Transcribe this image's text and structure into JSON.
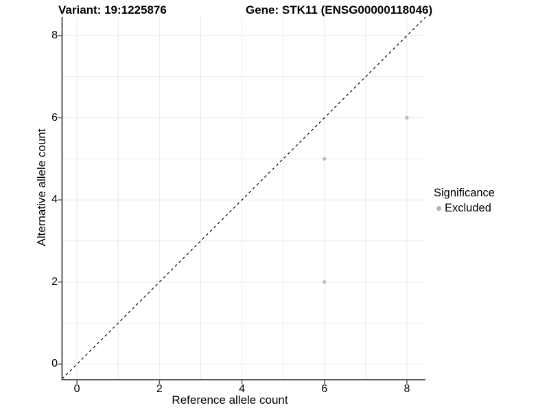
{
  "titles": {
    "variant": "Variant: 19:1225876",
    "gene": "Gene: STK11 (ENSG00000118046)"
  },
  "chart_data": {
    "type": "scatter",
    "xlabel": "Reference allele count",
    "ylabel": "Alternative allele count",
    "xlim": [
      -0.36,
      8.45
    ],
    "ylim": [
      -0.38,
      8.45
    ],
    "x_ticks": [
      0,
      2,
      4,
      6,
      8
    ],
    "y_ticks": [
      0,
      2,
      4,
      6,
      8
    ],
    "gridlines_every": 1,
    "grid": "on",
    "legend_position": "right-center",
    "series": [
      {
        "name": "Excluded",
        "color": "#bcbcbc",
        "points": [
          {
            "x": 6,
            "y": 2
          },
          {
            "x": 6,
            "y": 5
          },
          {
            "x": 8,
            "y": 6
          }
        ]
      }
    ],
    "reference_line": {
      "type": "identity-diagonal",
      "style": "dashed",
      "color": "#000000"
    },
    "legend": {
      "title": "Significance",
      "entries": [
        {
          "label": "Excluded",
          "color": "#b3b3b3"
        }
      ]
    }
  },
  "colors": {
    "background": "#ffffff",
    "grid": "#e8e8e8",
    "axis": "#595959",
    "point": "#bcbcbc",
    "dashed_line": "#000000",
    "text": "#000000"
  }
}
